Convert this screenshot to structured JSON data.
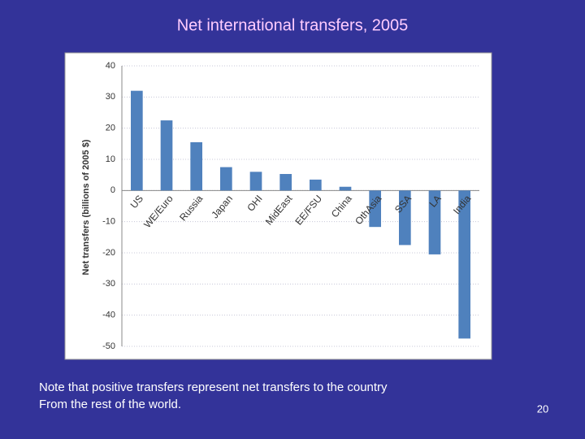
{
  "chart_data": {
    "type": "bar",
    "title": "Net international transfers, 2005",
    "y_label": "Net transfers (billions of 2005 $)",
    "categories": [
      "US",
      "WE/Euro",
      "Russia",
      "Japan",
      "OHI",
      "MidEast",
      "EE/FSU",
      "China",
      "OthAsia",
      "SSA",
      "LA",
      "India"
    ],
    "values": [
      32,
      22.5,
      15.5,
      7.5,
      6,
      5.3,
      3.5,
      1.2,
      -11.7,
      -17.5,
      -20.5,
      -47.5
    ],
    "color": "#4f81bd",
    "ylim": [
      -50,
      40
    ],
    "yticks": [
      40,
      30,
      20,
      10,
      0,
      -10,
      -20,
      -30,
      -40,
      -50
    ],
    "grid": true
  },
  "notes": [
    "Note that positive transfers represent net transfers to the country",
    "From the rest of the world."
  ],
  "page_number": "20"
}
